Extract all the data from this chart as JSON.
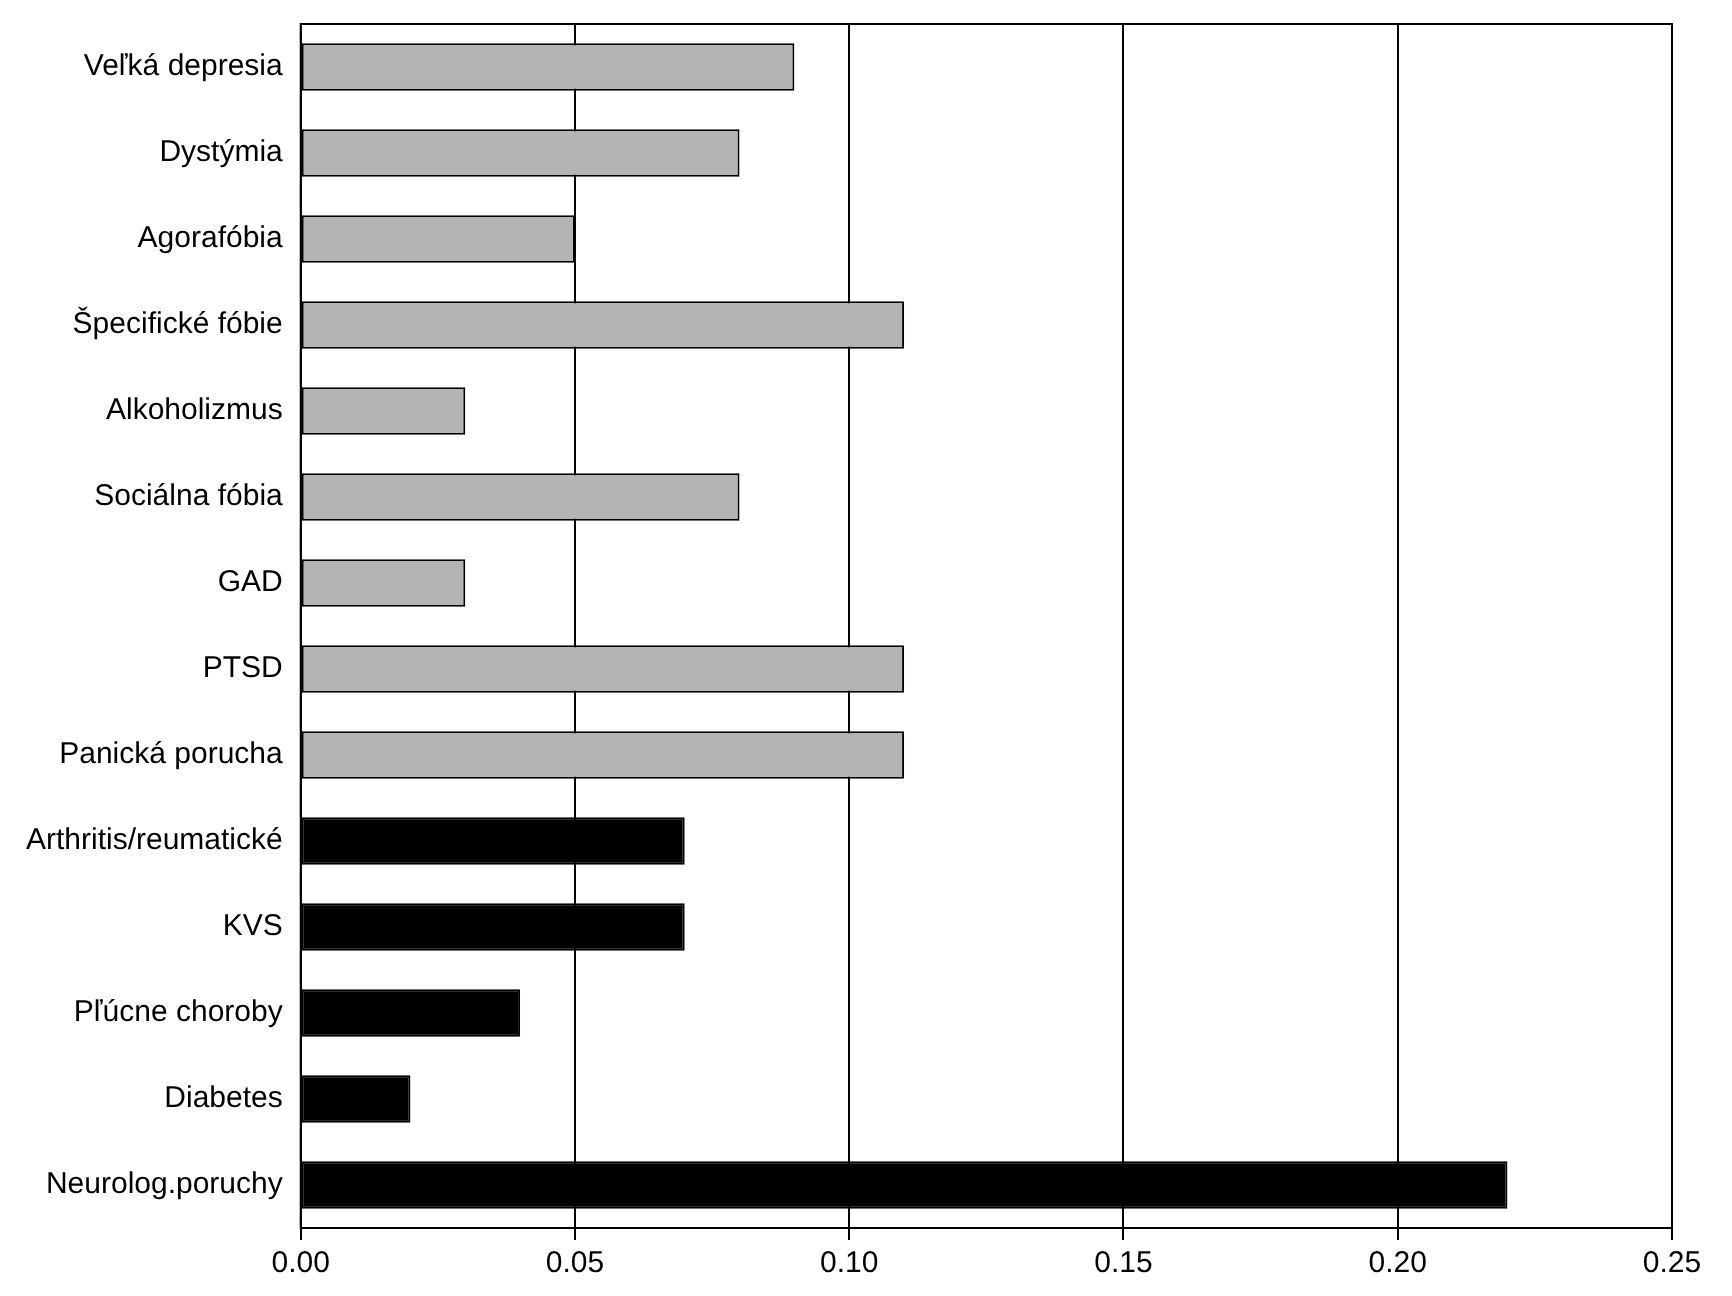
{
  "chart_data": {
    "type": "bar",
    "orientation": "horizontal",
    "categories": [
      "Veľká depresia",
      "Dystýmia",
      "Agorafóbia",
      "Špecifické fóbie",
      "Alkoholizmus",
      "Sociálna fóbia",
      "GAD",
      "PTSD",
      "Panická porucha",
      "Arthritis/reumatické",
      "KVS",
      "Pľúcne choroby",
      "Diabetes",
      "Neurolog.poruchy"
    ],
    "values": [
      0.09,
      0.08,
      0.05,
      0.11,
      0.03,
      0.08,
      0.03,
      0.11,
      0.11,
      0.07,
      0.07,
      0.04,
      0.02,
      0.22
    ],
    "colors": [
      "#b4b4b4",
      "#b4b4b4",
      "#b4b4b4",
      "#b4b4b4",
      "#b4b4b4",
      "#b4b4b4",
      "#b4b4b4",
      "#b4b4b4",
      "#b4b4b4",
      "#000000",
      "#000000",
      "#000000",
      "#000000",
      "#000000"
    ],
    "xlim": [
      0,
      0.25
    ],
    "xticks": [
      {
        "value": 0,
        "label": "0.00"
      },
      {
        "value": 0.05,
        "label": "0.05"
      },
      {
        "value": 0.1,
        "label": "0.10"
      },
      {
        "value": 0.15,
        "label": "0.15"
      },
      {
        "value": 0.2,
        "label": "0.20"
      },
      {
        "value": 0.25,
        "label": "0.25"
      }
    ],
    "grid": "x",
    "legend": false
  }
}
